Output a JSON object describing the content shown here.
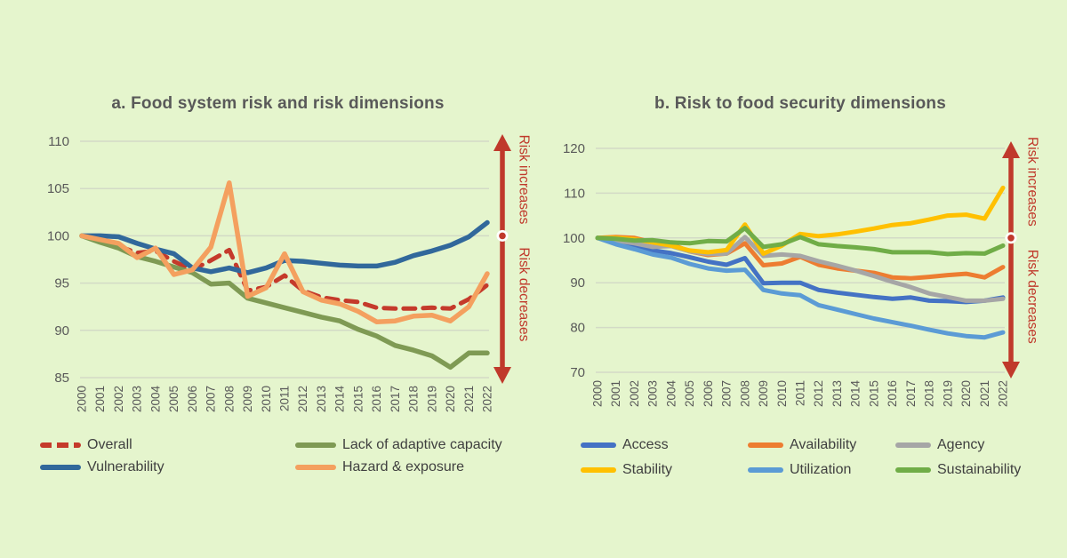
{
  "colors": {
    "background": "#e5f5cd",
    "grid": "#d3dac6",
    "title_text": "#595959",
    "axis_text": "#595959",
    "legend_text": "#404040",
    "arrow_red": "#c0392b"
  },
  "chart_data": [
    {
      "id": "a",
      "type": "line",
      "title": "a. Food system risk and risk dimensions",
      "x": [
        "2000",
        "2001",
        "2002",
        "2003",
        "2004",
        "2005",
        "2006",
        "2007",
        "2008",
        "2009",
        "2010",
        "2011",
        "2012",
        "2013",
        "2014",
        "2015",
        "2016",
        "2017",
        "2018",
        "2019",
        "2020",
        "2021",
        "2022"
      ],
      "ylim": [
        85,
        110
      ],
      "yticks": [
        85,
        90,
        95,
        100,
        105,
        110
      ],
      "grid": true,
      "legend_position": "bottom",
      "series": [
        {
          "name": "Overall",
          "color": "#c53a2b",
          "dashed": true,
          "values": [
            100,
            99.5,
            98.9,
            98.2,
            98.4,
            97.3,
            96.4,
            97.4,
            98.5,
            94.2,
            94.6,
            95.8,
            94.2,
            93.5,
            93.2,
            93.0,
            92.4,
            92.3,
            92.3,
            92.4,
            92.3,
            93.3,
            94.8
          ]
        },
        {
          "name": "Vulnerability",
          "color": "#31689b",
          "dashed": false,
          "values": [
            100,
            100,
            99.9,
            99.2,
            98.6,
            98.1,
            96.6,
            96.2,
            96.6,
            96.1,
            96.6,
            97.4,
            97.3,
            97.1,
            96.9,
            96.8,
            96.8,
            97.2,
            97.9,
            98.4,
            99.0,
            99.9,
            101.4
          ]
        },
        {
          "name": "Lack of adaptive capacity",
          "color": "#7f9a54",
          "dashed": false,
          "values": [
            100,
            99.3,
            98.7,
            97.8,
            97.3,
            96.7,
            96.1,
            94.9,
            95.0,
            93.4,
            92.9,
            92.4,
            91.9,
            91.4,
            91.0,
            90.1,
            89.4,
            88.4,
            87.9,
            87.3,
            86.1,
            87.6,
            87.6
          ]
        },
        {
          "name": "Hazard & exposure",
          "color": "#f4a05f",
          "dashed": false,
          "values": [
            100,
            99.6,
            99.2,
            97.7,
            98.7,
            95.9,
            96.4,
            98.8,
            105.6,
            93.6,
            94.5,
            98.1,
            94.1,
            93.2,
            92.8,
            92.0,
            90.9,
            91.0,
            91.5,
            91.6,
            91.0,
            92.5,
            96.0
          ]
        }
      ],
      "annotation": {
        "increase_label": "Risk increases",
        "decrease_label": "Risk decreases",
        "arrow_color": "#c0392b",
        "marker_value": 100
      }
    },
    {
      "id": "b",
      "type": "line",
      "title": "b. Risk to food security dimensions",
      "x": [
        "2000",
        "2001",
        "2002",
        "2003",
        "2004",
        "2005",
        "2006",
        "2007",
        "2008",
        "2009",
        "2010",
        "2011",
        "2012",
        "2013",
        "2014",
        "2015",
        "2016",
        "2017",
        "2018",
        "2019",
        "2020",
        "2021",
        "2022"
      ],
      "ylim": [
        70,
        120
      ],
      "yticks": [
        70,
        80,
        90,
        100,
        110,
        120
      ],
      "grid": true,
      "legend_position": "bottom",
      "series": [
        {
          "name": "Access",
          "color": "#4472c4",
          "dashed": false,
          "values": [
            100,
            99.1,
            98.2,
            97.2,
            96.6,
            95.7,
            94.7,
            94.0,
            95.5,
            89.9,
            90.0,
            90.0,
            88.4,
            87.8,
            87.3,
            86.8,
            86.4,
            86.7,
            86.0,
            85.9,
            85.7,
            86.0,
            86.7
          ]
        },
        {
          "name": "Availability",
          "color": "#ed7d31",
          "dashed": false,
          "values": [
            100,
            100.2,
            100.0,
            99.0,
            98.6,
            97.0,
            96.2,
            96.5,
            98.8,
            93.9,
            94.3,
            95.8,
            94.0,
            93.2,
            92.7,
            92.2,
            91.2,
            91.0,
            91.3,
            91.7,
            92.0,
            91.2,
            93.5
          ]
        },
        {
          "name": "Agency",
          "color": "#a6a6a6",
          "dashed": false,
          "values": [
            100,
            99.4,
            98.8,
            98.0,
            98.2,
            97.0,
            96.4,
            96.5,
            100.2,
            96.0,
            96.3,
            96.0,
            94.8,
            93.8,
            92.7,
            91.5,
            90.2,
            89.0,
            87.6,
            86.8,
            86.0,
            86.0,
            86.4
          ]
        },
        {
          "name": "Stability",
          "color": "#ffc000",
          "dashed": false,
          "values": [
            100,
            100,
            99.7,
            99.0,
            98.3,
            97.2,
            96.8,
            97.3,
            103.0,
            96.5,
            98.3,
            100.9,
            100.4,
            100.8,
            101.4,
            102.1,
            102.9,
            103.3,
            104.1,
            105.0,
            105.2,
            104.3,
            111.2
          ]
        },
        {
          "name": "Utilization",
          "color": "#5b9bd5",
          "dashed": false,
          "values": [
            100,
            98.6,
            97.5,
            96.3,
            95.6,
            94.2,
            93.2,
            92.7,
            92.9,
            88.4,
            87.6,
            87.2,
            85.0,
            84.0,
            83.0,
            82.0,
            81.2,
            80.4,
            79.5,
            78.7,
            78.1,
            77.8,
            78.9
          ]
        },
        {
          "name": "Sustainability",
          "color": "#70ad47",
          "dashed": false,
          "values": [
            100,
            99.8,
            99.4,
            99.5,
            99.0,
            98.8,
            99.3,
            99.2,
            102.2,
            98.0,
            98.6,
            100.2,
            98.6,
            98.2,
            97.9,
            97.5,
            96.8,
            96.8,
            96.8,
            96.4,
            96.6,
            96.5,
            98.3
          ]
        }
      ],
      "annotation": {
        "increase_label": "Risk increases",
        "decrease_label": "Risk decreases",
        "arrow_color": "#c0392b",
        "marker_value": 100
      }
    }
  ]
}
